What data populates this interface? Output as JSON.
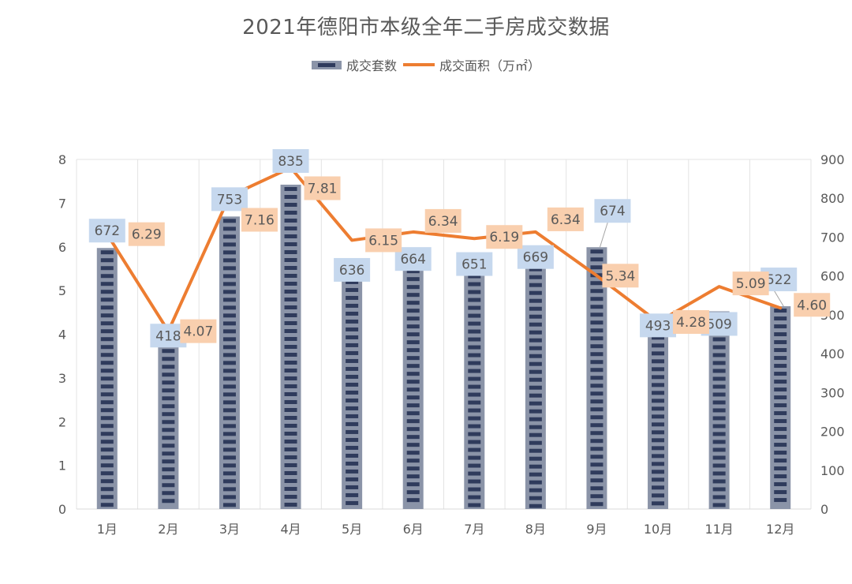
{
  "chart_data": {
    "type": "bar",
    "title": "2021年德阳市本级全年二手房成交数据",
    "categories": [
      "1月",
      "2月",
      "3月",
      "4月",
      "5月",
      "6月",
      "7月",
      "8月",
      "9月",
      "10月",
      "11月",
      "12月"
    ],
    "series": [
      {
        "name": "成交套数",
        "type": "bar",
        "axis": "right",
        "values": [
          672,
          418,
          753,
          835,
          636,
          664,
          651,
          669,
          674,
          493,
          509,
          522
        ]
      },
      {
        "name": "成交面积（万㎡）",
        "type": "line",
        "axis": "left",
        "values": [
          6.29,
          4.07,
          7.16,
          7.81,
          6.15,
          6.34,
          6.19,
          6.34,
          5.34,
          4.28,
          5.09,
          4.6
        ]
      }
    ],
    "bar_labels": [
      "672",
      "418",
      "753",
      "835",
      "636",
      "664",
      "651",
      "669",
      "674",
      "493",
      "509",
      "522"
    ],
    "line_labels": [
      "6.29",
      "4.07",
      "7.16",
      "7.81",
      "6.15",
      "6.34",
      "6.19",
      "6.34",
      "5.34",
      "4.28",
      "5.09",
      "4.60"
    ],
    "y_left": {
      "ylim": [
        0,
        8
      ],
      "ticks": [
        "0",
        "1",
        "2",
        "3",
        "4",
        "5",
        "6",
        "7",
        "8"
      ]
    },
    "y_right": {
      "ylim": [
        0,
        900
      ],
      "ticks": [
        "0",
        "100",
        "200",
        "300",
        "400",
        "500",
        "600",
        "700",
        "800",
        "900"
      ]
    },
    "grid": "vertical",
    "legend": "top-center",
    "colors": {
      "bar_outer": "#8b94a8",
      "bar_inner": "#2f3b5c",
      "line": "#ed7d31",
      "bar_label_bg": "#c6d8ee",
      "line_label_bg": "#f9cfae",
      "grid": "#e3e3e3"
    }
  }
}
